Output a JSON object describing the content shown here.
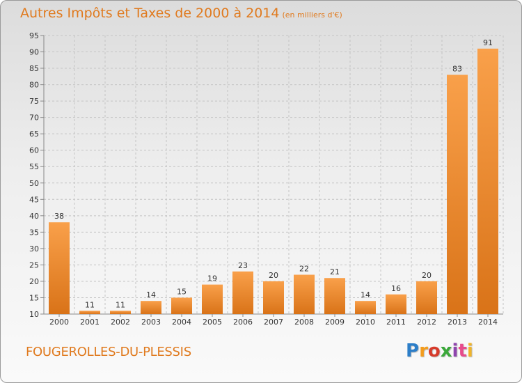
{
  "header": {
    "title": "Autres Impôts et Taxes de 2000 à 2014",
    "subtitle": "(en milliers d'€)"
  },
  "footer": {
    "commune": "FOUGEROLLES-DU-PLESSIS"
  },
  "logo": {
    "letters": [
      "P",
      "r",
      "o",
      "x",
      "i",
      "t",
      "i"
    ],
    "colors": [
      "#2c7ec8",
      "#f39c1d",
      "#d63b2b",
      "#3aa83a",
      "#8e44ad",
      "#e74c8c",
      "#f0b429"
    ]
  },
  "colors": {
    "bar_light": "#f9a04a",
    "bar_dark": "#d97318",
    "accent": "#e07a1e"
  },
  "chart_data": {
    "type": "bar",
    "title": "Autres Impôts et Taxes de 2000 à 2014",
    "subtitle": "(en milliers d'€)",
    "categories": [
      "2000",
      "2001",
      "2002",
      "2003",
      "2004",
      "2005",
      "2006",
      "2007",
      "2008",
      "2009",
      "2010",
      "2011",
      "2012",
      "2013",
      "2014"
    ],
    "values": [
      38,
      11,
      11,
      14,
      15,
      19,
      23,
      20,
      22,
      21,
      14,
      16,
      20,
      83,
      91
    ],
    "ylim": [
      10,
      95
    ],
    "yticks": [
      10,
      15,
      20,
      25,
      30,
      35,
      40,
      45,
      50,
      55,
      60,
      65,
      70,
      75,
      80,
      85,
      90,
      95
    ],
    "grid": true,
    "xlabel": "",
    "ylabel": ""
  }
}
